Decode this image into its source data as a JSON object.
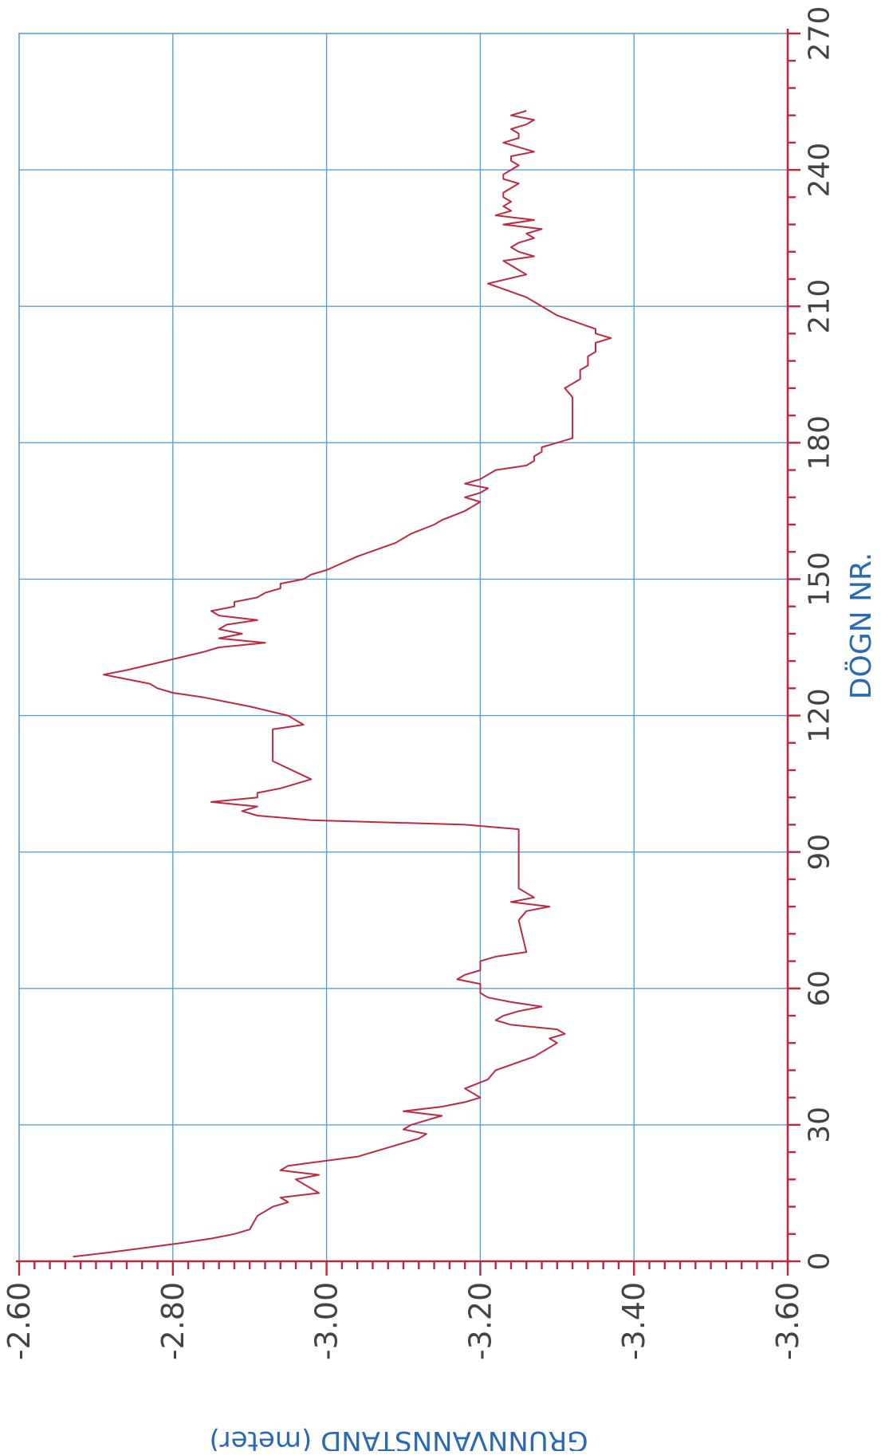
{
  "chart_data": {
    "type": "line",
    "orientation": "rotated-90-clockwise",
    "xlabel": "DÖGN NR.",
    "ylabel": "GRUNNVANNSTAND (meter)",
    "xlim": [
      0,
      270
    ],
    "ylim": [
      -2.6,
      -3.6
    ],
    "x_ticks": [
      "0",
      "30",
      "60",
      "90",
      "120",
      "150",
      "180",
      "210",
      "240",
      "270"
    ],
    "y_ticks": [
      "-2.60",
      "-2.80",
      "-3.00",
      "-3.20",
      "-3.40",
      "-3.60"
    ],
    "grid": true,
    "colors": {
      "line": "#c0283e",
      "grid": "#5aa0dc",
      "axis": "#c0283e",
      "label": "#2a6ab5"
    },
    "series": [
      {
        "x": [
          1,
          2,
          4,
          5,
          6,
          7,
          10,
          11,
          12,
          13,
          14,
          15,
          16,
          17,
          18,
          19,
          20,
          21,
          23,
          25,
          27,
          28,
          29,
          30,
          31,
          32,
          33,
          34,
          35,
          36,
          38,
          40,
          42,
          45,
          48,
          49,
          50,
          51,
          52,
          53,
          54,
          55,
          56,
          57,
          58,
          59,
          60,
          61,
          62,
          63,
          64,
          65,
          66,
          67,
          68,
          75,
          77,
          78,
          79,
          80,
          82,
          85,
          90,
          95,
          96,
          97,
          98,
          99,
          100,
          101,
          102,
          103,
          104,
          106,
          110,
          114,
          116,
          117,
          118,
          119,
          120,
          122,
          124,
          125,
          126,
          127,
          128,
          129,
          130,
          132,
          134,
          135,
          136,
          137,
          138,
          139,
          140,
          141,
          142,
          143,
          144,
          145,
          146,
          147,
          148,
          149,
          150,
          151,
          152,
          155,
          158,
          160,
          162,
          163,
          165,
          167,
          168,
          169,
          170,
          171,
          172,
          173,
          174,
          175,
          176,
          177,
          178,
          179,
          180,
          181,
          185,
          190,
          192,
          193,
          194,
          195,
          196,
          197,
          198,
          199,
          200,
          201,
          202,
          203,
          204,
          205,
          208,
          212,
          215,
          217,
          218,
          219,
          220,
          221,
          222,
          223,
          224,
          225,
          226,
          227,
          228,
          229,
          230,
          231,
          232,
          233,
          234,
          235,
          236,
          237,
          238,
          239,
          240,
          241,
          242,
          243,
          244,
          245,
          246,
          247,
          248,
          249,
          250,
          251,
          252,
          253
        ],
        "y": [
          -2.67,
          -2.72,
          -2.81,
          -2.85,
          -2.88,
          -2.9,
          -2.91,
          -2.92,
          -2.93,
          -2.95,
          -2.94,
          -2.99,
          -2.98,
          -2.97,
          -2.96,
          -2.99,
          -2.94,
          -2.95,
          -3.04,
          -3.08,
          -3.12,
          -3.13,
          -3.1,
          -3.11,
          -3.13,
          -3.15,
          -3.1,
          -3.15,
          -3.18,
          -3.2,
          -3.18,
          -3.21,
          -3.22,
          -3.27,
          -3.3,
          -3.29,
          -3.31,
          -3.3,
          -3.24,
          -3.22,
          -3.23,
          -3.25,
          -3.28,
          -3.24,
          -3.21,
          -3.2,
          -3.2,
          -3.2,
          -3.17,
          -3.18,
          -3.2,
          -3.2,
          -3.2,
          -3.22,
          -3.26,
          -3.25,
          -3.26,
          -3.29,
          -3.24,
          -3.27,
          -3.25,
          -3.25,
          -3.25,
          -3.25,
          -3.18,
          -2.98,
          -2.91,
          -2.89,
          -2.91,
          -2.85,
          -2.91,
          -2.91,
          -2.94,
          -2.98,
          -2.93,
          -2.93,
          -2.93,
          -2.93,
          -2.97,
          -2.96,
          -2.95,
          -2.9,
          -2.84,
          -2.8,
          -2.78,
          -2.77,
          -2.74,
          -2.71,
          -2.74,
          -2.79,
          -2.84,
          -2.86,
          -2.92,
          -2.86,
          -2.89,
          -2.86,
          -2.87,
          -2.91,
          -2.86,
          -2.85,
          -2.88,
          -2.88,
          -2.91,
          -2.92,
          -2.94,
          -2.94,
          -2.97,
          -2.98,
          -3.0,
          -3.04,
          -3.09,
          -3.11,
          -3.14,
          -3.15,
          -3.18,
          -3.2,
          -3.18,
          -3.2,
          -3.21,
          -3.18,
          -3.2,
          -3.21,
          -3.22,
          -3.26,
          -3.27,
          -3.27,
          -3.28,
          -3.28,
          -3.3,
          -3.32,
          -3.32,
          -3.32,
          -3.31,
          -3.32,
          -3.33,
          -3.33,
          -3.33,
          -3.34,
          -3.34,
          -3.34,
          -3.35,
          -3.35,
          -3.35,
          -3.37,
          -3.35,
          -3.35,
          -3.3,
          -3.26,
          -3.21,
          -3.26,
          -3.25,
          -3.24,
          -3.23,
          -3.27,
          -3.25,
          -3.24,
          -3.25,
          -3.27,
          -3.26,
          -3.28,
          -3.23,
          -3.27,
          -3.22,
          -3.24,
          -3.23,
          -3.24,
          -3.23,
          -3.23,
          -3.24,
          -3.25,
          -3.23,
          -3.23,
          -3.24,
          -3.25,
          -3.24,
          -3.24,
          -3.27,
          -3.25,
          -3.23,
          -3.25,
          -3.25,
          -3.24,
          -3.26,
          -3.27,
          -3.24,
          -3.26
        ]
      }
    ]
  }
}
